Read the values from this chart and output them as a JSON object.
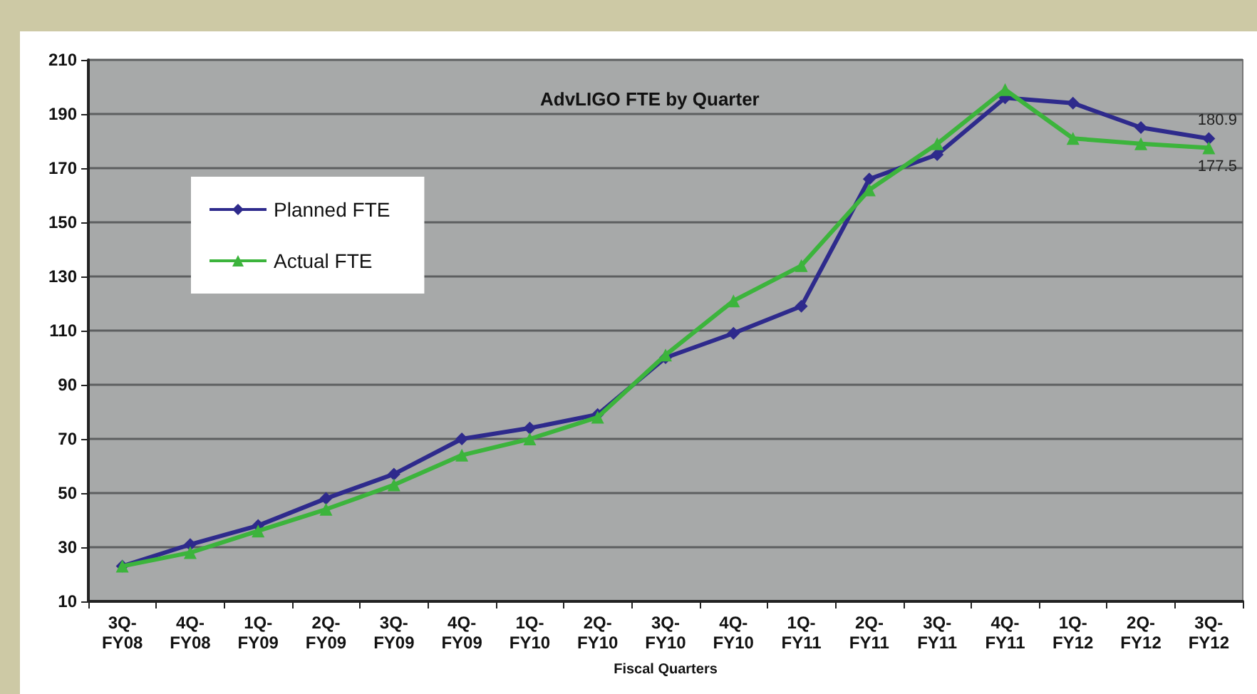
{
  "chart_data": {
    "type": "line",
    "title": "AdvLIGO FTE by Quarter",
    "xlabel": "Fiscal Quarters",
    "categories": [
      "3Q-\nFY08",
      "4Q-\nFY08",
      "1Q-\nFY09",
      "2Q-\nFY09",
      "3Q-\nFY09",
      "4Q-\nFY09",
      "1Q-\nFY10",
      "2Q-\nFY10",
      "3Q-\nFY10",
      "4Q-\nFY10",
      "1Q-\nFY11",
      "2Q-\nFY11",
      "3Q-\nFY11",
      "4Q-\nFY11",
      "1Q-\nFY12",
      "2Q-\nFY12",
      "3Q-\nFY12"
    ],
    "series": [
      {
        "name": "Planned FTE",
        "color": "#2e2a8c",
        "marker": "diamond",
        "values": [
          23,
          31,
          38,
          48,
          57,
          70,
          74,
          79,
          100,
          109,
          119,
          166,
          175,
          196,
          194,
          185,
          180.9
        ],
        "value_labels": [
          null,
          null,
          null,
          null,
          null,
          null,
          null,
          null,
          null,
          null,
          null,
          null,
          null,
          null,
          null,
          null,
          "180.9"
        ]
      },
      {
        "name": "Actual FTE",
        "color": "#3cb43c",
        "marker": "triangle",
        "values": [
          23,
          28,
          36,
          44,
          53,
          64,
          70,
          78,
          101,
          121,
          134,
          162,
          179,
          199,
          181,
          179,
          177.5
        ],
        "value_labels": [
          null,
          null,
          null,
          null,
          null,
          null,
          null,
          null,
          null,
          null,
          null,
          null,
          null,
          null,
          null,
          null,
          "177.5"
        ]
      }
    ],
    "ylim": [
      10,
      210
    ],
    "yticks": [
      10,
      30,
      50,
      70,
      90,
      110,
      130,
      150,
      170,
      190,
      210
    ],
    "grid": "y",
    "legend": "top left"
  }
}
